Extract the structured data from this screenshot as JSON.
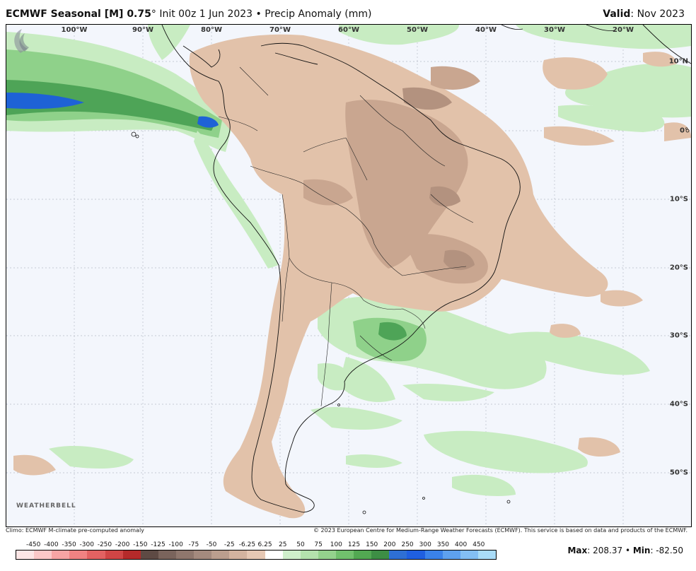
{
  "header": {
    "model": "ECMWF Seasonal [M] 0.75",
    "degree": "°",
    "init": "Init 00z 1 Jun 2023",
    "bullet": "•",
    "product": "Precip Anomaly (mm)",
    "valid_label": "Valid",
    "valid_value": ": Nov 2023"
  },
  "longitudes": [
    "100°W",
    "90°W",
    "80°W",
    "70°W",
    "60°W",
    "50°W",
    "40°W",
    "30°W",
    "20°W"
  ],
  "latitudes": [
    "10°N",
    "0°",
    "10°S",
    "20°S",
    "30°S",
    "40°S",
    "50°S"
  ],
  "logo": {
    "text": "WEATHERBELL"
  },
  "footer": {
    "left": "Climo: ECMWF M-climate pre-computed anomaly",
    "right": "© 2023 European Centre for Medium-Range Weather Forecasts (ECMWF). This service is based on data and products of the ECMWF."
  },
  "colorbar": {
    "labels": [
      "-450",
      "-400",
      "-350",
      "-300",
      "-250",
      "-200",
      "-150",
      "-125",
      "-100",
      "-75",
      "-50",
      "-25",
      "-6.25",
      "6.25",
      "25",
      "50",
      "75",
      "100",
      "125",
      "150",
      "200",
      "250",
      "300",
      "350",
      "400",
      "450"
    ],
    "colors": [
      "#fde6e6",
      "#fbc8c8",
      "#f7a4a4",
      "#f08282",
      "#e26262",
      "#d04545",
      "#b52a2a",
      "#5e4a44",
      "#7a645c",
      "#8f776d",
      "#a48a7e",
      "#bb9e8e",
      "#d3b39f",
      "#e6c8b4",
      "#ffffff",
      "#cfeecb",
      "#b4e2ad",
      "#94d28d",
      "#71c06d",
      "#52a852",
      "#3d8e45",
      "#2e6fd4",
      "#1f5fe0",
      "#3a82ea",
      "#5ea1ef",
      "#83bff4",
      "#a9dcf8"
    ]
  },
  "stats": {
    "max_label": "Max",
    "max_value": ": 208.37",
    "sep": " • ",
    "min_label": "Min",
    "min_value": ": -82.50"
  },
  "colors": {
    "ocean": "#f3f6fc",
    "dry_light": "#e2c2aa",
    "dry_mid": "#c9a690",
    "dry_dark": "#b3927f",
    "wet_light": "#c8ecc2",
    "wet_mid": "#8fd18a",
    "wet_dark": "#4ea457",
    "very_wet": "#1e62d6"
  }
}
